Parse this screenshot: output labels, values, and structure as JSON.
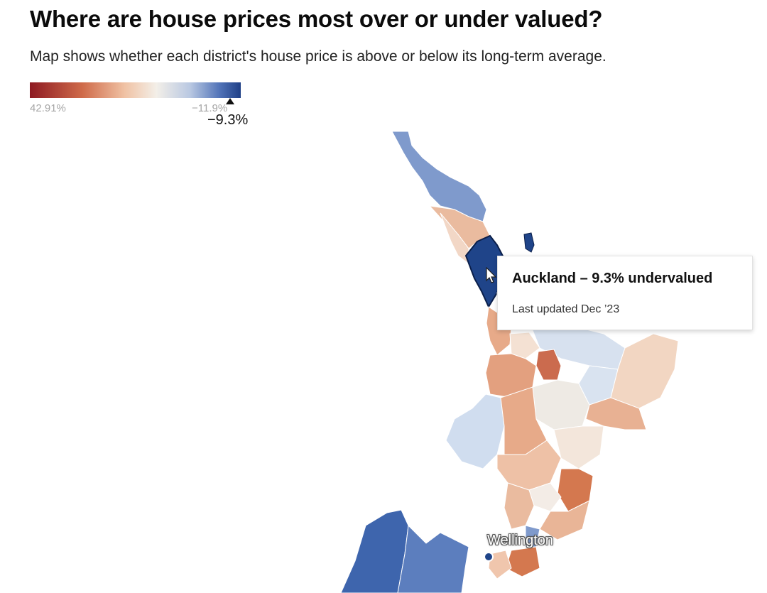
{
  "header": {
    "title": "Where are house prices most over or under valued?",
    "subtitle": "Map shows whether each district's house price is above or below its long-term average."
  },
  "legend": {
    "min_label": "42.91%",
    "max_label": "−11.9%",
    "current_label": "−9.3%",
    "color_stops": [
      "#8e1a22",
      "#cf6b4a",
      "#f0c2a4",
      "#f3efe8",
      "#b9c8e2",
      "#5173b8",
      "#1f3f86"
    ]
  },
  "map": {
    "city_label": "Wellington",
    "highlighted_region": "Auckland"
  },
  "tooltip": {
    "title": "Auckland – 9.3% undervalued",
    "subtitle": "Last updated Dec ’23"
  },
  "icons": [
    "cursor-icon",
    "legend-marker-icon"
  ]
}
